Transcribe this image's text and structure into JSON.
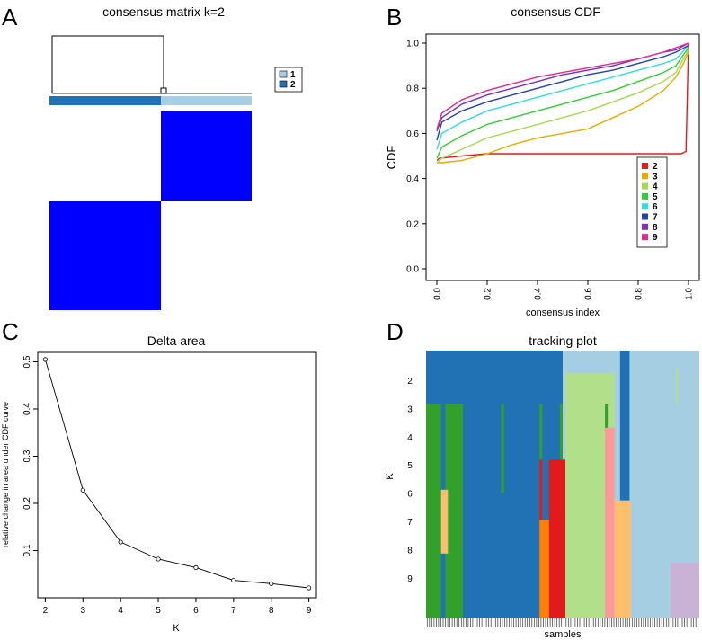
{
  "panels": {
    "A": {
      "letter": "A",
      "chart_data": {
        "type": "heatmap",
        "title": "consensus matrix k=2",
        "clusters": [
          {
            "label": "2",
            "color": "#2171b5",
            "share": 0.55
          },
          {
            "label": "1",
            "color": "#a6cfe6",
            "share": 0.45
          }
        ],
        "legend": [
          {
            "label": "1",
            "color": "#a6cfe6"
          },
          {
            "label": "2",
            "color": "#2171b5"
          }
        ],
        "block_color": "#0000ff"
      }
    },
    "B": {
      "letter": "B",
      "chart_data": {
        "type": "line",
        "title": "consensus CDF",
        "xlabel": "consensus index",
        "ylabel": "CDF",
        "xlim": [
          0,
          1
        ],
        "ylim": [
          0,
          1
        ],
        "xticks": [
          "0.0",
          "0.2",
          "0.4",
          "0.6",
          "0.8",
          "1.0"
        ],
        "yticks": [
          "0.0",
          "0.2",
          "0.4",
          "0.6",
          "0.8",
          "1.0"
        ],
        "legend_position": "bottom-right",
        "series": [
          {
            "name": "2",
            "color": "#e41a1c",
            "x": [
              0,
              0.01,
              0.1,
              0.2,
              0.97,
              0.99,
              1.0
            ],
            "y": [
              0.48,
              0.49,
              0.5,
              0.51,
              0.51,
              0.52,
              1.0
            ]
          },
          {
            "name": "3",
            "color": "#e6ab02",
            "x": [
              0,
              0.02,
              0.1,
              0.2,
              0.3,
              0.4,
              0.5,
              0.6,
              0.7,
              0.8,
              0.9,
              0.95,
              0.98,
              1.0
            ],
            "y": [
              0.47,
              0.47,
              0.48,
              0.51,
              0.55,
              0.58,
              0.6,
              0.62,
              0.67,
              0.72,
              0.79,
              0.85,
              0.91,
              0.96
            ]
          },
          {
            "name": "4",
            "color": "#a6d854",
            "x": [
              0,
              0.02,
              0.1,
              0.2,
              0.3,
              0.4,
              0.5,
              0.6,
              0.7,
              0.8,
              0.9,
              0.95,
              1.0
            ],
            "y": [
              0.47,
              0.49,
              0.53,
              0.58,
              0.61,
              0.64,
              0.67,
              0.7,
              0.74,
              0.78,
              0.83,
              0.87,
              0.97
            ]
          },
          {
            "name": "5",
            "color": "#33cc33",
            "x": [
              0,
              0.02,
              0.1,
              0.2,
              0.3,
              0.4,
              0.5,
              0.6,
              0.7,
              0.8,
              0.9,
              0.95,
              1.0
            ],
            "y": [
              0.49,
              0.54,
              0.59,
              0.64,
              0.67,
              0.7,
              0.73,
              0.76,
              0.79,
              0.83,
              0.87,
              0.9,
              0.98
            ]
          },
          {
            "name": "6",
            "color": "#33dddd",
            "x": [
              0,
              0.02,
              0.1,
              0.2,
              0.3,
              0.4,
              0.5,
              0.6,
              0.7,
              0.8,
              0.9,
              0.95,
              1.0
            ],
            "y": [
              0.53,
              0.6,
              0.65,
              0.7,
              0.73,
              0.76,
              0.79,
              0.82,
              0.85,
              0.88,
              0.91,
              0.93,
              0.99
            ]
          },
          {
            "name": "7",
            "color": "#2244aa",
            "x": [
              0,
              0.02,
              0.1,
              0.2,
              0.3,
              0.4,
              0.5,
              0.6,
              0.7,
              0.8,
              0.9,
              0.95,
              1.0
            ],
            "y": [
              0.57,
              0.65,
              0.7,
              0.74,
              0.77,
              0.8,
              0.83,
              0.86,
              0.88,
              0.91,
              0.94,
              0.96,
              0.99
            ]
          },
          {
            "name": "8",
            "color": "#7b2fbf",
            "x": [
              0,
              0.02,
              0.1,
              0.2,
              0.3,
              0.4,
              0.5,
              0.6,
              0.7,
              0.8,
              0.9,
              0.95,
              1.0
            ],
            "y": [
              0.61,
              0.67,
              0.73,
              0.77,
              0.8,
              0.83,
              0.86,
              0.88,
              0.9,
              0.93,
              0.96,
              0.97,
              1.0
            ]
          },
          {
            "name": "9",
            "color": "#e7298a",
            "x": [
              0,
              0.02,
              0.1,
              0.2,
              0.3,
              0.4,
              0.5,
              0.6,
              0.7,
              0.8,
              0.9,
              0.95,
              1.0
            ],
            "y": [
              0.62,
              0.69,
              0.75,
              0.79,
              0.82,
              0.85,
              0.87,
              0.89,
              0.91,
              0.93,
              0.96,
              0.98,
              1.0
            ]
          }
        ]
      }
    },
    "C": {
      "letter": "C",
      "chart_data": {
        "type": "line",
        "title": "Delta area",
        "xlabel": "K",
        "ylabel": "relative change in area under CDF curve",
        "xlim": [
          1.8,
          9.2
        ],
        "ylim": [
          0,
          0.52
        ],
        "xticks": [
          "2",
          "3",
          "4",
          "5",
          "6",
          "7",
          "8",
          "9"
        ],
        "yticks": [
          "0.1",
          "0.2",
          "0.3",
          "0.4",
          "0.5"
        ],
        "x": [
          2,
          3,
          4,
          5,
          6,
          7,
          8,
          9
        ],
        "y": [
          0.505,
          0.228,
          0.118,
          0.082,
          0.064,
          0.037,
          0.03,
          0.021
        ]
      }
    },
    "D": {
      "letter": "D",
      "chart_data": {
        "type": "heatmap",
        "title": "tracking plot",
        "xlabel": "samples",
        "ylabel": "K",
        "k_labels": [
          "2",
          "3",
          "4",
          "5",
          "6",
          "7",
          "8",
          "9"
        ],
        "n_samples": 120,
        "base_colors": [
          "#2171b5",
          "#a6cee3"
        ],
        "base_split": 0.5
      }
    }
  }
}
